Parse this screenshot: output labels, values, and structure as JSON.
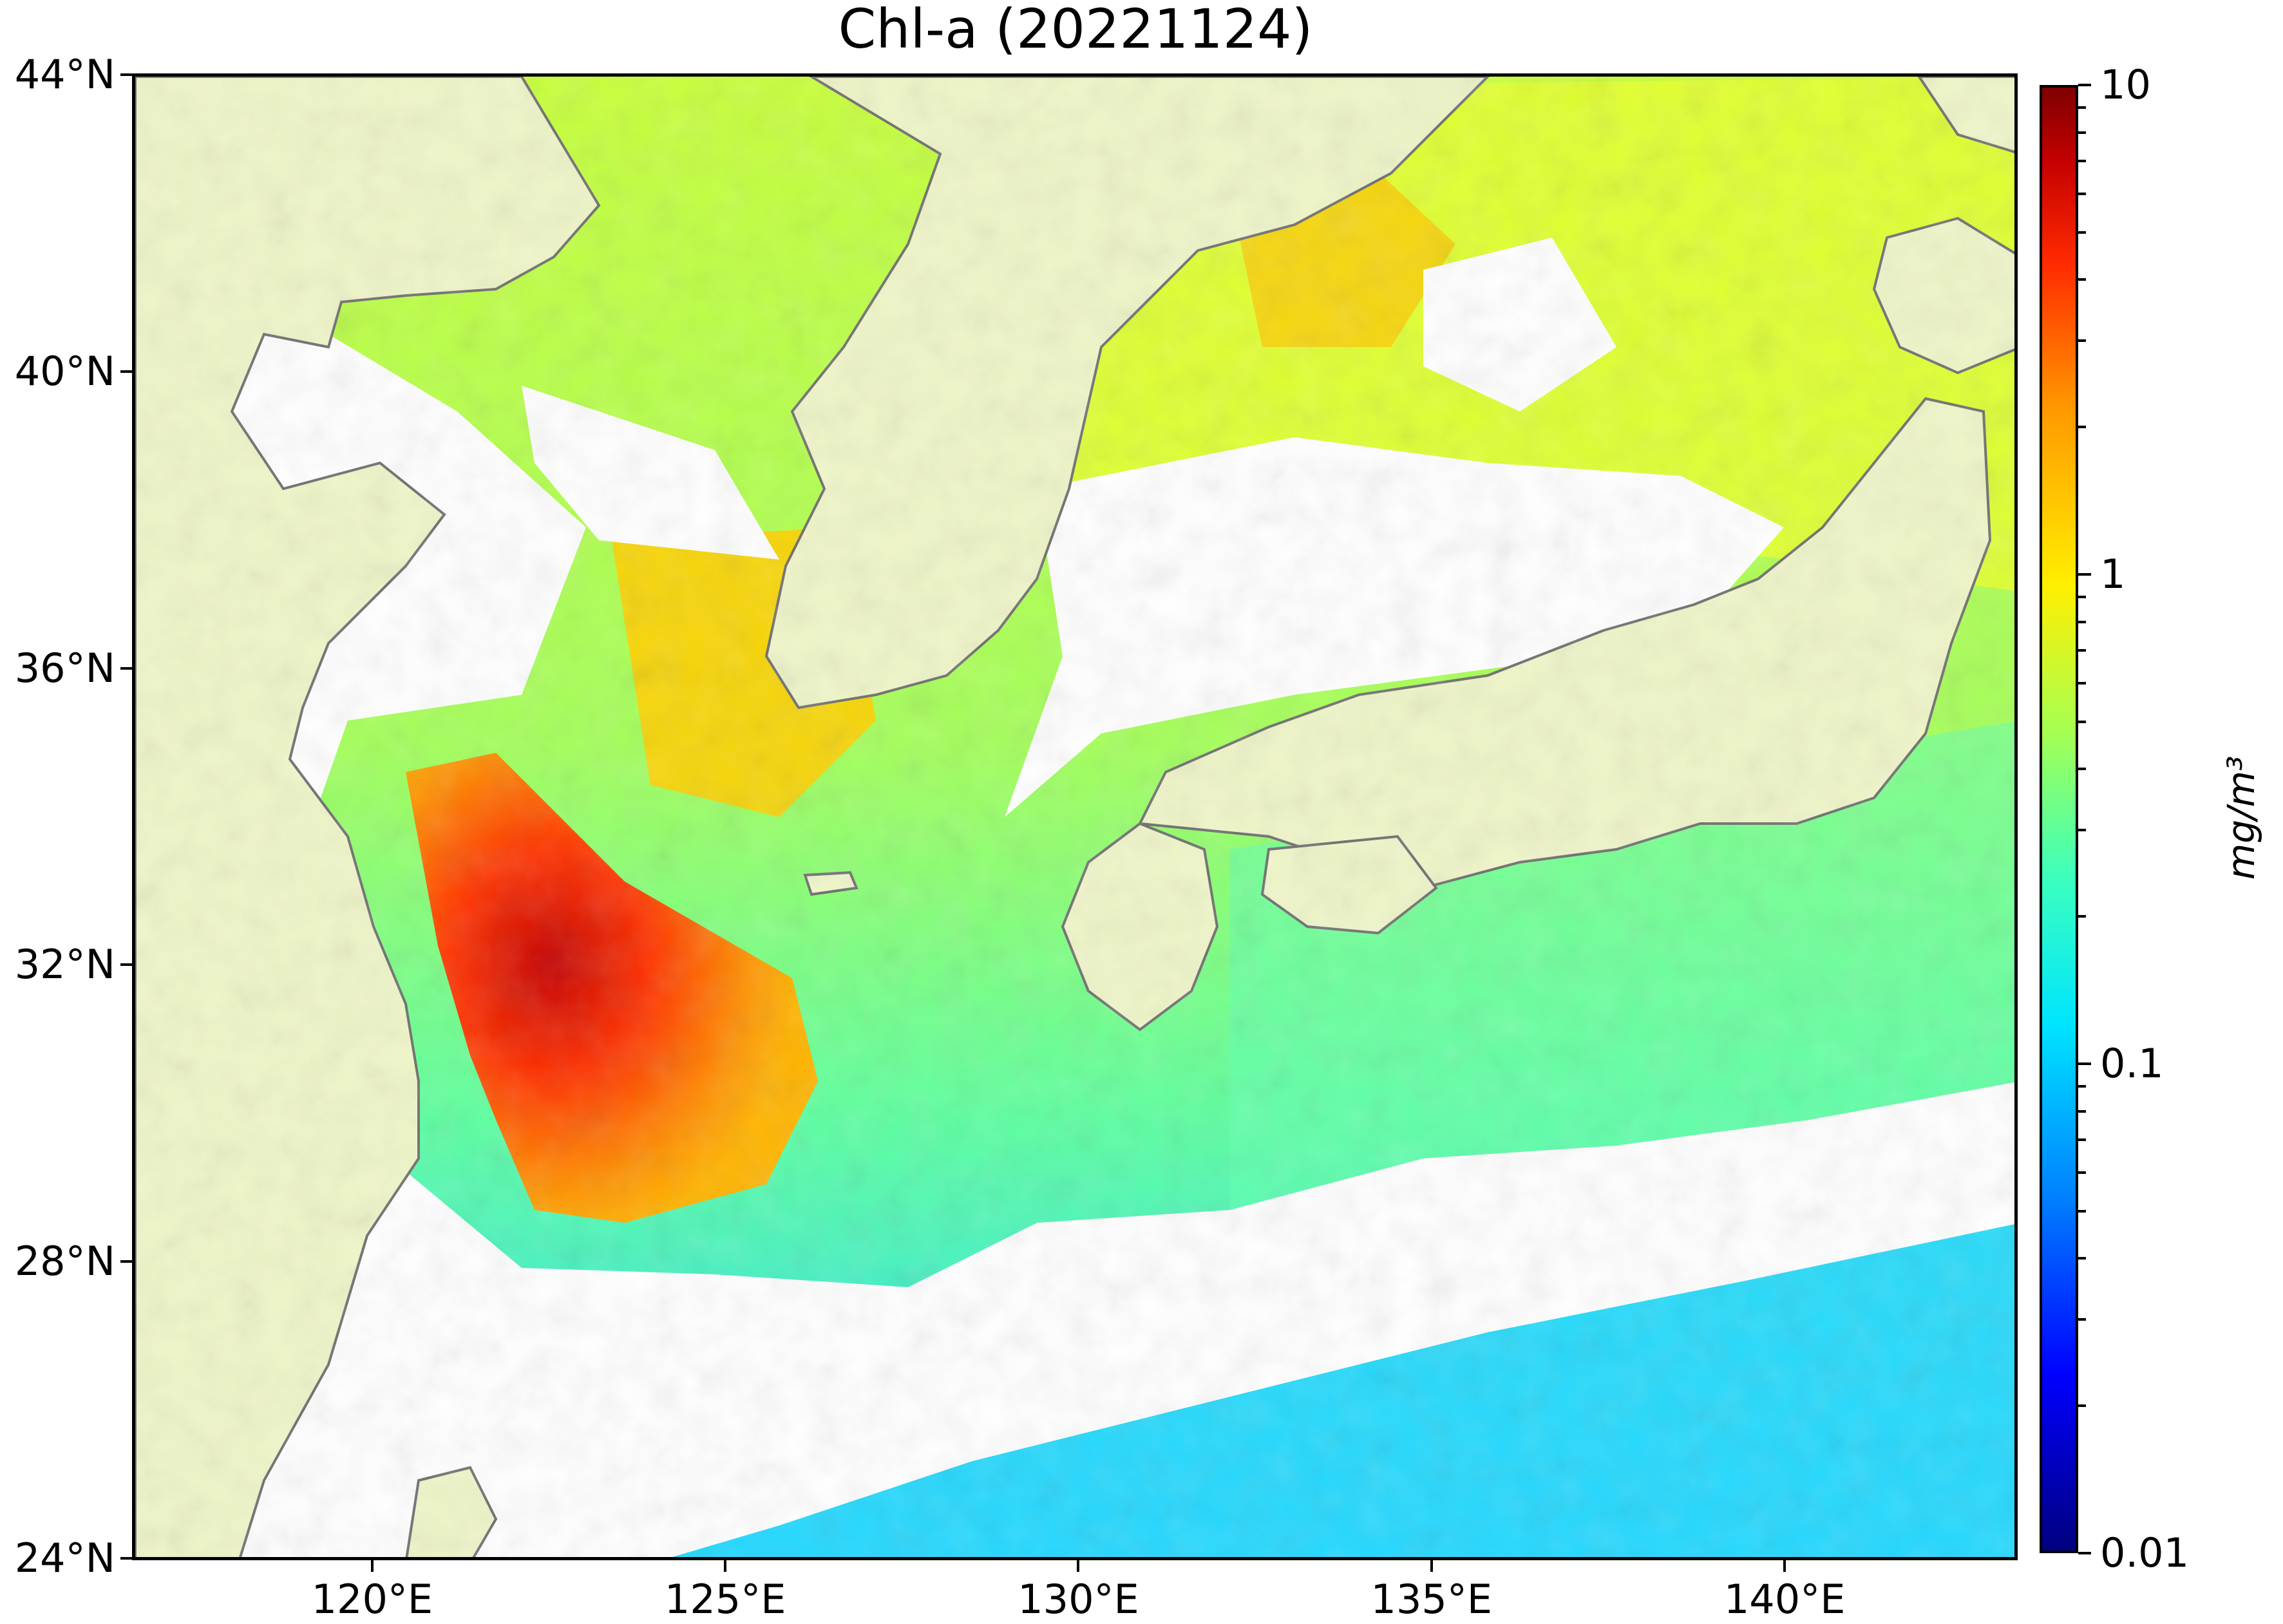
{
  "title": "Chl-a (20221124)",
  "map": {
    "lat_range": [
      24,
      44
    ],
    "lon_range": [
      116.6,
      143.3
    ],
    "lat_ticks": [
      {
        "value": 44,
        "label": "44°N"
      },
      {
        "value": 40,
        "label": "40°N"
      },
      {
        "value": 36,
        "label": "36°N"
      },
      {
        "value": 32,
        "label": "32°N"
      },
      {
        "value": 28,
        "label": "28°N"
      },
      {
        "value": 24,
        "label": "24°N"
      }
    ],
    "lon_ticks": [
      {
        "value": 120,
        "label": "120°E"
      },
      {
        "value": 125,
        "label": "125°E"
      },
      {
        "value": 130,
        "label": "130°E"
      },
      {
        "value": 135,
        "label": "135°E"
      },
      {
        "value": 140,
        "label": "140°E"
      }
    ],
    "colors": {
      "land": "#eff5c8",
      "cloud_no_data": "#ffffff",
      "coastline": "#707070"
    }
  },
  "colorbar": {
    "scale": "log",
    "range": [
      0.01,
      10
    ],
    "colormap": "jet",
    "ticks": [
      {
        "value": 10,
        "label": "10"
      },
      {
        "value": 1,
        "label": "1"
      },
      {
        "value": 0.1,
        "label": "0.1"
      },
      {
        "value": 0.01,
        "label": "0.01"
      }
    ],
    "unit_label": "mg/m³"
  }
}
